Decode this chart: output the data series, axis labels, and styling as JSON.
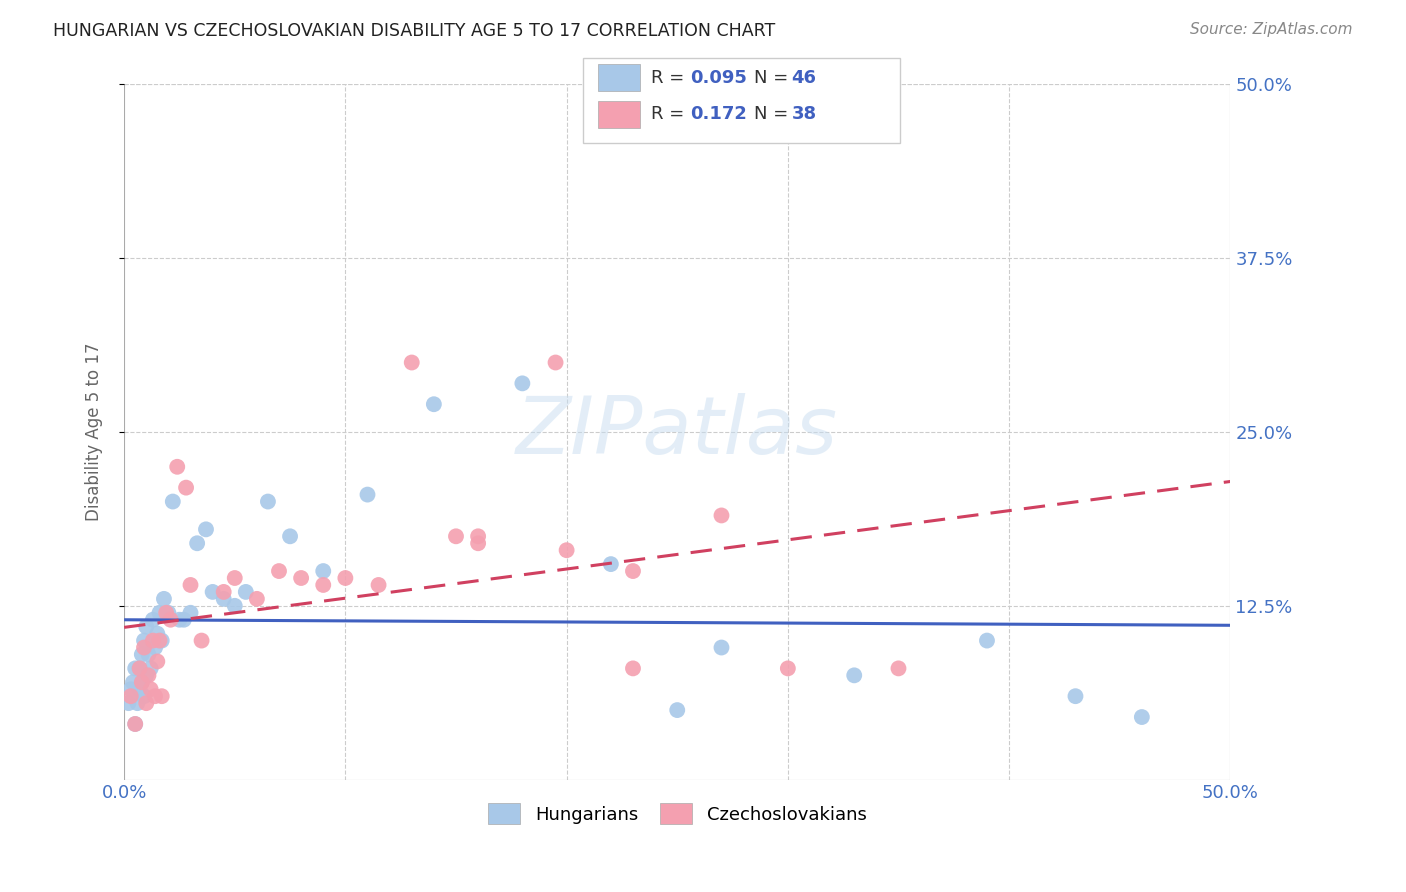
{
  "title": "HUNGARIAN VS CZECHOSLOVAKIAN DISABILITY AGE 5 TO 17 CORRELATION CHART",
  "source": "Source: ZipAtlas.com",
  "ylabel": "Disability Age 5 to 17",
  "xlim": [
    0.0,
    0.5
  ],
  "ylim": [
    0.0,
    0.5
  ],
  "ytick_labels": [
    "12.5%",
    "25.0%",
    "37.5%",
    "50.0%"
  ],
  "ytick_positions": [
    0.125,
    0.25,
    0.375,
    0.5
  ],
  "hungarian_color": "#a8c8e8",
  "czechoslovakian_color": "#f4a0b0",
  "hungarian_line_color": "#4060c0",
  "czechoslovakian_line_color": "#d04060",
  "legend_R_hungarian": "0.095",
  "legend_N_hungarian": "46",
  "legend_R_czechoslovakian": "0.172",
  "legend_N_czechoslovakian": "38",
  "watermark": "ZIPatlas",
  "hun_x": [
    0.002,
    0.003,
    0.004,
    0.005,
    0.005,
    0.006,
    0.007,
    0.007,
    0.008,
    0.008,
    0.009,
    0.009,
    0.01,
    0.01,
    0.011,
    0.012,
    0.013,
    0.014,
    0.015,
    0.016,
    0.017,
    0.018,
    0.02,
    0.022,
    0.025,
    0.027,
    0.03,
    0.033,
    0.037,
    0.04,
    0.045,
    0.05,
    0.055,
    0.065,
    0.075,
    0.09,
    0.11,
    0.14,
    0.18,
    0.22,
    0.27,
    0.33,
    0.25,
    0.39,
    0.43,
    0.46
  ],
  "hun_y": [
    0.055,
    0.065,
    0.07,
    0.04,
    0.08,
    0.055,
    0.065,
    0.08,
    0.07,
    0.09,
    0.06,
    0.1,
    0.075,
    0.11,
    0.09,
    0.08,
    0.115,
    0.095,
    0.105,
    0.12,
    0.1,
    0.13,
    0.12,
    0.2,
    0.115,
    0.115,
    0.12,
    0.17,
    0.18,
    0.135,
    0.13,
    0.125,
    0.135,
    0.2,
    0.175,
    0.15,
    0.205,
    0.27,
    0.285,
    0.155,
    0.095,
    0.075,
    0.05,
    0.1,
    0.06,
    0.045
  ],
  "cze_x": [
    0.003,
    0.005,
    0.007,
    0.008,
    0.009,
    0.01,
    0.011,
    0.012,
    0.013,
    0.014,
    0.015,
    0.016,
    0.017,
    0.019,
    0.021,
    0.024,
    0.028,
    0.035,
    0.045,
    0.06,
    0.08,
    0.1,
    0.13,
    0.16,
    0.195,
    0.23,
    0.03,
    0.05,
    0.07,
    0.09,
    0.115,
    0.15,
    0.2,
    0.27,
    0.35,
    0.16,
    0.23,
    0.3
  ],
  "cze_y": [
    0.06,
    0.04,
    0.08,
    0.07,
    0.095,
    0.055,
    0.075,
    0.065,
    0.1,
    0.06,
    0.085,
    0.1,
    0.06,
    0.12,
    0.115,
    0.225,
    0.21,
    0.1,
    0.135,
    0.13,
    0.145,
    0.145,
    0.3,
    0.17,
    0.3,
    0.15,
    0.14,
    0.145,
    0.15,
    0.14,
    0.14,
    0.175,
    0.165,
    0.19,
    0.08,
    0.175,
    0.08,
    0.08
  ],
  "background_color": "#ffffff",
  "grid_color": "#cccccc"
}
